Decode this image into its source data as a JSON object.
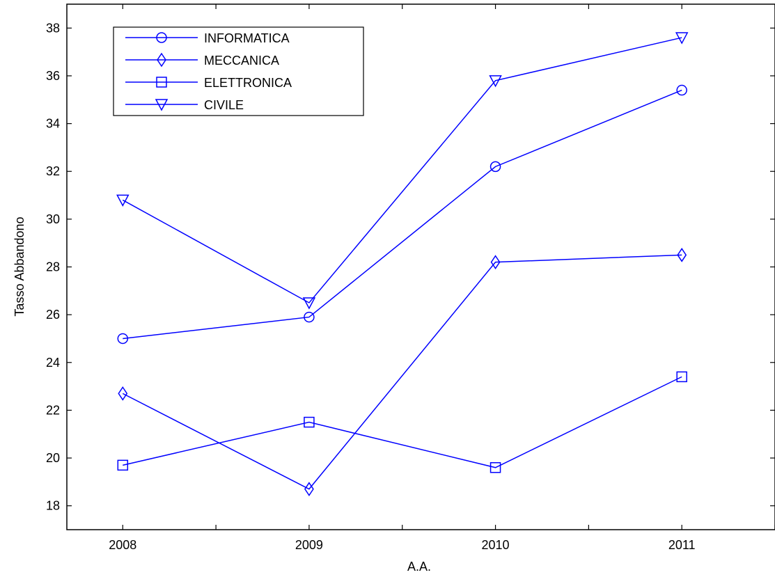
{
  "chart_data": {
    "type": "line",
    "xlabel": "A.A.",
    "ylabel": "Tasso Abbandono",
    "x": [
      2008,
      2009,
      2010,
      2011
    ],
    "xlim": [
      2007.7,
      2011.5
    ],
    "ylim": [
      17,
      39
    ],
    "xticks": [
      "2008",
      "2009",
      "2010",
      "2011"
    ],
    "yticks": [
      "18",
      "20",
      "22",
      "24",
      "26",
      "28",
      "30",
      "32",
      "34",
      "36",
      "38"
    ],
    "grid": false,
    "legend_position": "top-left",
    "line_color": "#0000ff",
    "series": [
      {
        "name": "INFORMATICA",
        "marker": "circle",
        "values": [
          25.0,
          25.9,
          32.2,
          35.4
        ]
      },
      {
        "name": "MECCANICA",
        "marker": "diamond",
        "values": [
          22.7,
          18.7,
          28.2,
          28.5
        ]
      },
      {
        "name": "ELETTRONICA",
        "marker": "square",
        "values": [
          19.7,
          21.5,
          19.6,
          23.4
        ]
      },
      {
        "name": "CIVILE",
        "marker": "triangle-down",
        "values": [
          30.8,
          26.5,
          35.8,
          37.6
        ]
      }
    ]
  }
}
